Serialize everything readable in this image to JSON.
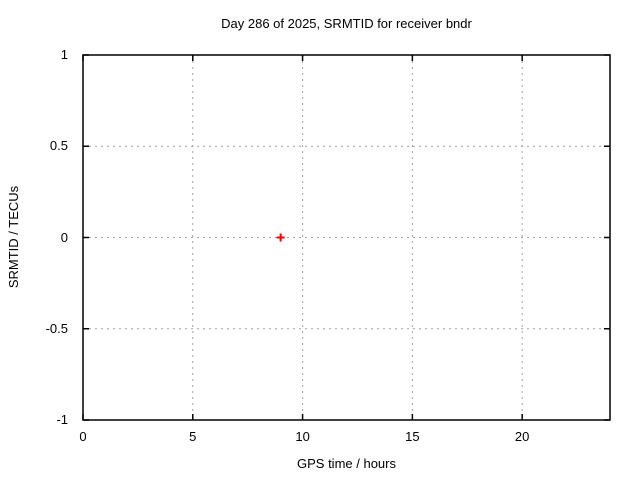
{
  "chart_data": {
    "type": "scatter",
    "title": "Day 286 of 2025, SRMTID for receiver bndr",
    "xlabel": "GPS time / hours",
    "ylabel": "SRMTID / TECUs",
    "xlim": [
      0,
      24
    ],
    "ylim": [
      -1,
      1
    ],
    "xticks": [
      0,
      5,
      10,
      15,
      20
    ],
    "xtick_labels": [
      "0",
      "5",
      "10",
      "15",
      "20"
    ],
    "yticks": [
      -1,
      -0.5,
      0,
      0.5,
      1
    ],
    "ytick_labels": [
      "-1",
      "-0.5",
      "0",
      "0.5",
      "1"
    ],
    "grid": true,
    "legend": "none",
    "series": [
      {
        "name": "SRMTID",
        "marker": "plus",
        "color": "#ff0000",
        "points": [
          {
            "x": 9,
            "y": 0
          }
        ]
      }
    ]
  },
  "colors": {
    "background": "#ffffff",
    "border": "#000000",
    "grid": "#a0a0a0",
    "text": "#000000",
    "marker": "#ff0000"
  }
}
